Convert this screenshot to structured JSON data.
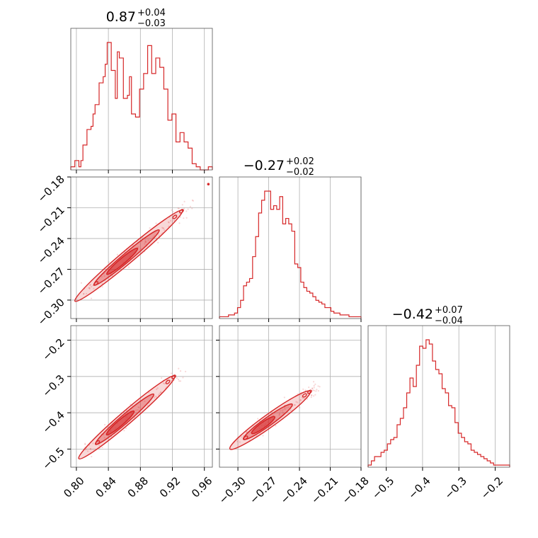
{
  "chart_data": {
    "type": "corner",
    "color": "#d62728",
    "grid": true,
    "params": [
      {
        "title": "0.87",
        "err_plus": "+0.04",
        "err_minus": "−0.03",
        "range": [
          0.793,
          0.97
        ],
        "ticks": [
          0.8,
          0.84,
          0.88,
          0.92,
          0.96
        ],
        "tick_labels": [
          "0.80",
          "0.84",
          "0.88",
          "0.92",
          "0.96"
        ],
        "hist": {
          "range": [
            0.793,
            0.97
          ],
          "values": [
            1,
            1,
            3,
            3,
            1,
            3,
            8,
            8,
            13,
            13,
            14,
            18,
            21,
            21,
            28,
            28,
            30,
            34,
            41,
            41,
            32,
            32,
            23,
            38,
            36,
            36,
            23,
            23,
            24,
            30,
            18,
            18,
            17,
            17,
            26,
            26,
            31,
            31,
            40,
            40,
            31,
            31,
            36,
            36,
            33,
            33,
            26,
            26,
            16,
            16,
            18,
            18,
            9,
            9,
            12,
            12,
            9,
            9,
            7,
            7,
            2,
            2,
            1,
            1,
            0,
            0,
            0,
            0,
            1,
            1
          ]
        }
      },
      {
        "title": "−0.27",
        "err_plus": "+0.02",
        "err_minus": "−0.02",
        "range": [
          -0.318,
          -0.18
        ],
        "ticks": [
          -0.3,
          -0.27,
          -0.24,
          -0.21,
          -0.18
        ],
        "tick_labels": [
          "−0.30",
          "−0.27",
          "−0.24",
          "−0.21",
          "−0.18"
        ],
        "hist": {
          "range": [
            -0.318,
            -0.18
          ],
          "values": [
            1,
            1,
            1,
            2,
            2,
            3,
            6,
            10,
            18,
            20,
            22,
            34,
            45,
            58,
            65,
            70,
            70,
            60,
            62,
            60,
            67,
            52,
            55,
            52,
            48,
            30,
            28,
            20,
            17,
            15,
            14,
            12,
            10,
            9,
            8,
            6,
            6,
            4,
            3,
            3,
            2,
            2,
            2,
            1,
            1,
            1,
            1
          ]
        }
      },
      {
        "title": "−0.42",
        "err_plus": "+0.07",
        "err_minus": "−0.04",
        "range": [
          -0.55,
          -0.16
        ],
        "ticks": [
          -0.5,
          -0.4,
          -0.3,
          -0.2
        ],
        "tick_labels": [
          "−0.5",
          "−0.4",
          "−0.3",
          "−0.2"
        ],
        "hist": {
          "range": [
            -0.55,
            -0.16
          ],
          "values": [
            1,
            3,
            5,
            5,
            7,
            8,
            11,
            13,
            14,
            20,
            23,
            28,
            35,
            42,
            38,
            48,
            57,
            56,
            60,
            58,
            50,
            46,
            44,
            37,
            35,
            29,
            28,
            21,
            16,
            14,
            12,
            11,
            8,
            7,
            6,
            5,
            4,
            3,
            2,
            1,
            1,
            1,
            1,
            1
          ]
        }
      }
    ],
    "pairs": [
      {
        "row": 1,
        "col": 0,
        "line": [
          [
            0.815,
            -0.29
          ],
          [
            0.935,
            -0.211
          ]
        ],
        "outlier": [
          0.965,
          -0.187
        ]
      },
      {
        "row": 2,
        "col": 0,
        "line": [
          [
            0.818,
            -0.498
          ],
          [
            0.925,
            -0.295
          ]
        ],
        "outlier": null
      },
      {
        "row": 2,
        "col": 1,
        "line": [
          [
            -0.298,
            -0.48
          ],
          [
            -0.228,
            -0.338
          ]
        ],
        "outlier": null
      }
    ]
  }
}
